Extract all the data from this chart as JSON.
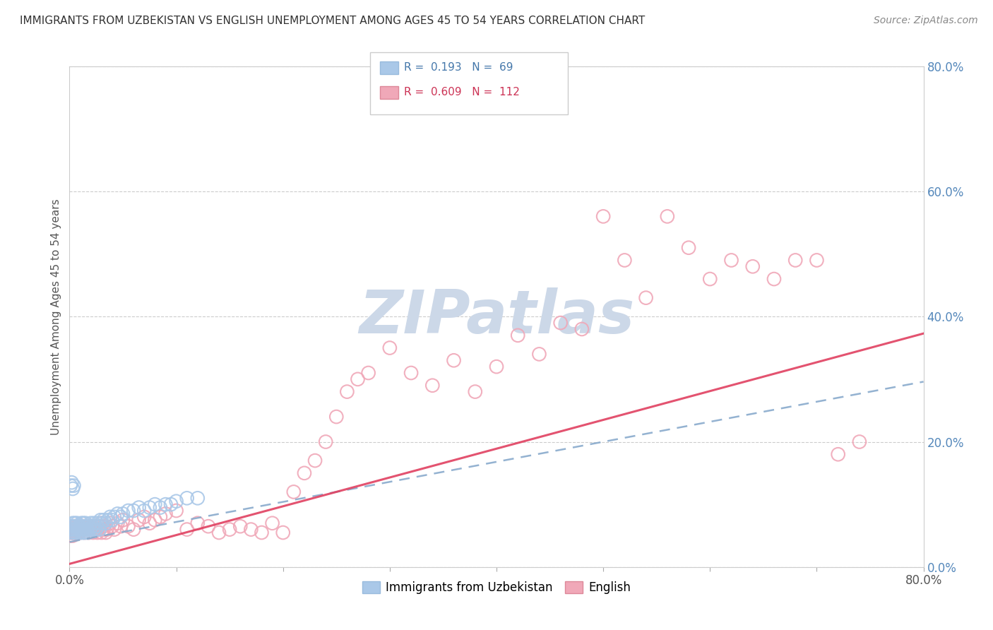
{
  "title": "IMMIGRANTS FROM UZBEKISTAN VS ENGLISH UNEMPLOYMENT AMONG AGES 45 TO 54 YEARS CORRELATION CHART",
  "source": "Source: ZipAtlas.com",
  "ylabel": "Unemployment Among Ages 45 to 54 years",
  "xlim": [
    0.0,
    0.8
  ],
  "ylim": [
    0.0,
    0.8
  ],
  "ytick_positions": [
    0.0,
    0.2,
    0.4,
    0.6,
    0.8
  ],
  "yticklabels": [
    "0.0%",
    "20.0%",
    "40.0%",
    "60.0%",
    "80.0%"
  ],
  "legend1_R": "0.193",
  "legend1_N": "69",
  "legend2_R": "0.609",
  "legend2_N": "112",
  "blue_scatter_color": "#aac8e8",
  "pink_scatter_color": "#f0a8b8",
  "blue_line_color": "#88aacc",
  "pink_line_color": "#e04060",
  "blue_line_slope": 0.32,
  "blue_line_intercept": 0.04,
  "pink_line_slope": 0.46,
  "pink_line_intercept": 0.005,
  "watermark": "ZIPatlas",
  "watermark_color": "#ccd8e8",
  "blue_x": [
    0.001,
    0.002,
    0.002,
    0.003,
    0.003,
    0.004,
    0.004,
    0.005,
    0.005,
    0.006,
    0.006,
    0.007,
    0.007,
    0.008,
    0.008,
    0.009,
    0.01,
    0.01,
    0.011,
    0.011,
    0.012,
    0.012,
    0.013,
    0.013,
    0.014,
    0.014,
    0.015,
    0.015,
    0.016,
    0.017,
    0.017,
    0.018,
    0.019,
    0.02,
    0.021,
    0.022,
    0.023,
    0.024,
    0.025,
    0.026,
    0.027,
    0.028,
    0.029,
    0.03,
    0.032,
    0.034,
    0.036,
    0.038,
    0.04,
    0.042,
    0.045,
    0.048,
    0.05,
    0.055,
    0.06,
    0.065,
    0.07,
    0.075,
    0.08,
    0.085,
    0.09,
    0.095,
    0.1,
    0.11,
    0.12,
    0.001,
    0.002,
    0.003,
    0.004
  ],
  "blue_y": [
    0.06,
    0.055,
    0.065,
    0.06,
    0.07,
    0.065,
    0.055,
    0.06,
    0.07,
    0.065,
    0.055,
    0.06,
    0.07,
    0.065,
    0.055,
    0.06,
    0.055,
    0.065,
    0.06,
    0.07,
    0.065,
    0.055,
    0.06,
    0.07,
    0.065,
    0.055,
    0.06,
    0.07,
    0.065,
    0.06,
    0.055,
    0.065,
    0.06,
    0.07,
    0.065,
    0.06,
    0.07,
    0.065,
    0.06,
    0.07,
    0.065,
    0.06,
    0.075,
    0.07,
    0.075,
    0.07,
    0.075,
    0.08,
    0.075,
    0.08,
    0.085,
    0.08,
    0.085,
    0.09,
    0.09,
    0.095,
    0.09,
    0.095,
    0.1,
    0.095,
    0.1,
    0.1,
    0.105,
    0.11,
    0.11,
    0.13,
    0.135,
    0.125,
    0.13
  ],
  "pink_x": [
    0.001,
    0.002,
    0.002,
    0.003,
    0.003,
    0.004,
    0.004,
    0.005,
    0.005,
    0.006,
    0.006,
    0.007,
    0.007,
    0.008,
    0.008,
    0.009,
    0.01,
    0.01,
    0.011,
    0.012,
    0.013,
    0.014,
    0.015,
    0.016,
    0.017,
    0.018,
    0.019,
    0.02,
    0.022,
    0.024,
    0.026,
    0.028,
    0.03,
    0.032,
    0.035,
    0.038,
    0.04,
    0.042,
    0.045,
    0.048,
    0.05,
    0.055,
    0.06,
    0.065,
    0.07,
    0.075,
    0.08,
    0.085,
    0.09,
    0.1,
    0.11,
    0.12,
    0.13,
    0.14,
    0.15,
    0.16,
    0.17,
    0.18,
    0.19,
    0.2,
    0.21,
    0.22,
    0.23,
    0.24,
    0.25,
    0.26,
    0.27,
    0.28,
    0.3,
    0.32,
    0.34,
    0.36,
    0.38,
    0.4,
    0.42,
    0.44,
    0.46,
    0.48,
    0.5,
    0.52,
    0.54,
    0.56,
    0.58,
    0.6,
    0.62,
    0.64,
    0.66,
    0.68,
    0.7,
    0.72,
    0.74,
    0.002,
    0.003,
    0.004,
    0.005,
    0.006,
    0.007,
    0.008,
    0.009,
    0.01,
    0.012,
    0.014,
    0.016,
    0.018,
    0.02,
    0.022,
    0.024,
    0.026,
    0.028,
    0.03,
    0.032,
    0.034
  ],
  "pink_y": [
    0.05,
    0.055,
    0.06,
    0.055,
    0.05,
    0.06,
    0.055,
    0.06,
    0.065,
    0.055,
    0.06,
    0.065,
    0.055,
    0.06,
    0.065,
    0.055,
    0.06,
    0.065,
    0.06,
    0.065,
    0.06,
    0.065,
    0.06,
    0.065,
    0.06,
    0.065,
    0.06,
    0.065,
    0.06,
    0.065,
    0.06,
    0.065,
    0.07,
    0.065,
    0.06,
    0.07,
    0.065,
    0.06,
    0.07,
    0.065,
    0.075,
    0.065,
    0.06,
    0.075,
    0.08,
    0.07,
    0.075,
    0.08,
    0.085,
    0.09,
    0.06,
    0.07,
    0.065,
    0.055,
    0.06,
    0.065,
    0.06,
    0.055,
    0.07,
    0.055,
    0.12,
    0.15,
    0.17,
    0.2,
    0.24,
    0.28,
    0.3,
    0.31,
    0.35,
    0.31,
    0.29,
    0.33,
    0.28,
    0.32,
    0.37,
    0.34,
    0.39,
    0.38,
    0.56,
    0.49,
    0.43,
    0.56,
    0.51,
    0.46,
    0.49,
    0.48,
    0.46,
    0.49,
    0.49,
    0.18,
    0.2,
    0.055,
    0.06,
    0.055,
    0.06,
    0.055,
    0.06,
    0.055,
    0.06,
    0.055,
    0.06,
    0.055,
    0.06,
    0.055,
    0.06,
    0.055,
    0.06,
    0.055,
    0.06,
    0.055,
    0.06,
    0.055
  ]
}
